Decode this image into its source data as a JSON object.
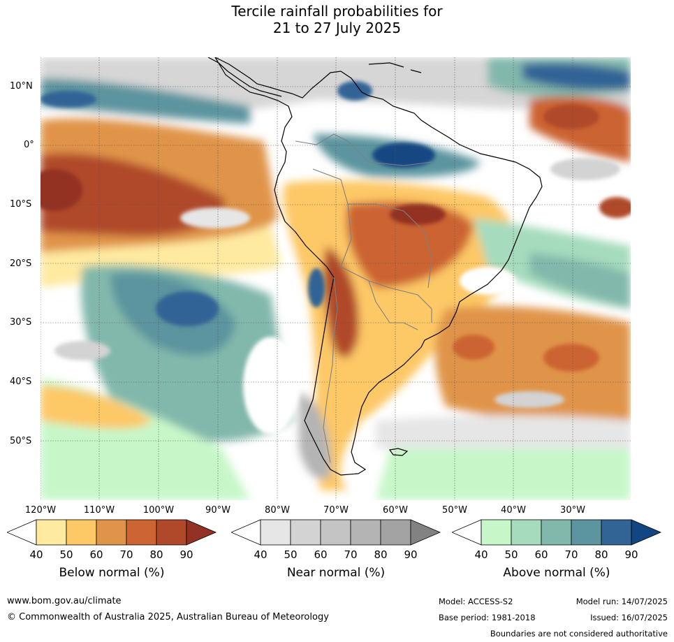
{
  "title": {
    "line1": "Tercile rainfall probabilities for",
    "line2": "21 to 27 July 2025"
  },
  "map": {
    "region": "South America and surrounding oceans",
    "lat_labels": [
      "10°N",
      "0°",
      "10°S",
      "20°S",
      "30°S",
      "40°S",
      "50°S"
    ],
    "lon_labels": [
      "120°W",
      "110°W",
      "100°W",
      "90°W",
      "80°W",
      "70°W",
      "60°W",
      "50°W",
      "40°W",
      "30°W"
    ]
  },
  "colorbars": [
    {
      "label": "Below normal (%)",
      "ticks": [
        "40",
        "50",
        "60",
        "70",
        "80",
        "90"
      ],
      "colors": [
        "#ffffff",
        "#ffeaa0",
        "#fdc866",
        "#e0944a",
        "#cc6433",
        "#b0482a",
        "#933224"
      ]
    },
    {
      "label": "Near normal (%)",
      "ticks": [
        "40",
        "50",
        "60",
        "70",
        "80",
        "90"
      ],
      "colors": [
        "#ffffff",
        "#e6e6e6",
        "#d3d3d3",
        "#c4c4c4",
        "#b4b4b4",
        "#a3a3a3",
        "#828282"
      ]
    },
    {
      "label": "Above normal (%)",
      "ticks": [
        "40",
        "50",
        "60",
        "70",
        "80",
        "90"
      ],
      "colors": [
        "#ffffff",
        "#c7f7c9",
        "#a6dbbe",
        "#82b8ac",
        "#5c949f",
        "#336496",
        "#124683"
      ]
    }
  ],
  "footer": {
    "website": "www.bom.gov.au/climate",
    "copyright": "© Commonwealth of Australia 2025, Australian Bureau of Meteorology",
    "model": "Model: ACCESS-S2",
    "model_run": "Model run: 14/07/2025",
    "base_period": "Base period: 1981-2018",
    "issued": "Issued: 16/07/2025",
    "disclaimer": "Boundaries are not considered authoritative"
  }
}
